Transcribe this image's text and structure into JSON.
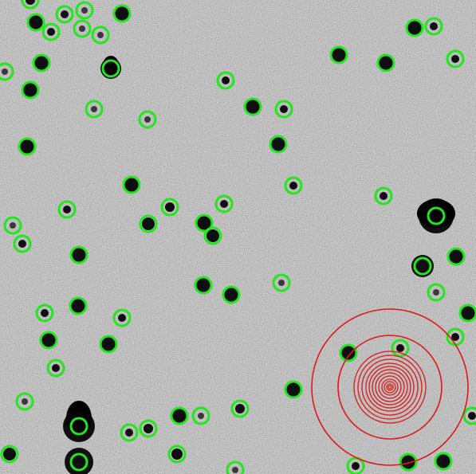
{
  "image": {
    "kind": "astronomical CCD field, inverted grayscale",
    "colors": {
      "background": "#b9b9b9",
      "star": "#000000",
      "detection_marker": "#22e61e",
      "target_aperture": "#e01818"
    }
  }
}
